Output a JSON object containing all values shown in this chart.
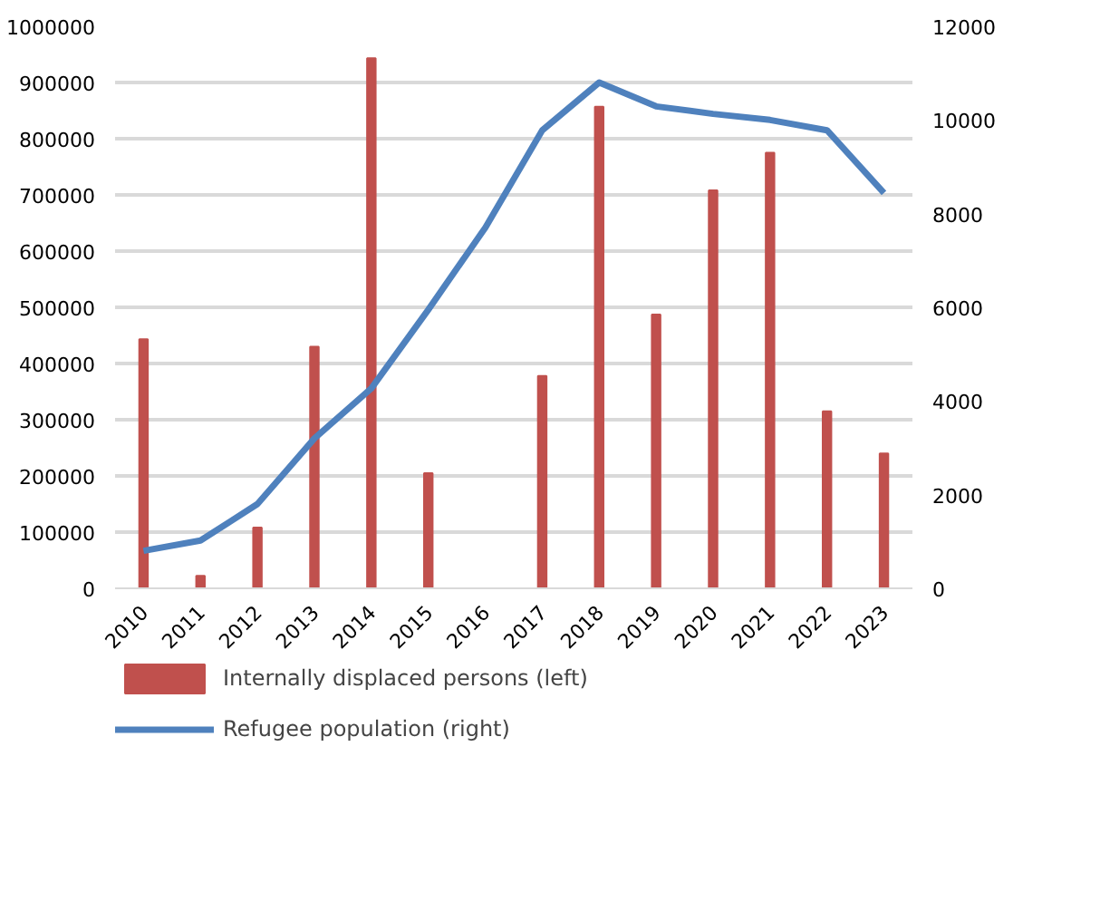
{
  "chart_data": {
    "type": "bar",
    "categories": [
      "2010",
      "2011",
      "2012",
      "2013",
      "2014",
      "2015",
      "2016",
      "2017",
      "2018",
      "2019",
      "2020",
      "2021",
      "2022",
      "2023"
    ],
    "series": [
      {
        "name": "Internally displaced persons (left)",
        "color": "#c0504d",
        "values": [
          443000,
          22000,
          108000,
          430000,
          943000,
          205000,
          0,
          378000,
          857000,
          487000,
          708000,
          775000,
          315000,
          240000
        ]
      },
      {
        "name": "Refugee population (right)",
        "type": "line",
        "axis": "y2",
        "color": "#4f81bd",
        "values": [
          800,
          1020,
          1800,
          3200,
          4270,
          5950,
          7700,
          9780,
          10800,
          10290,
          10130,
          10000,
          9780,
          8440
        ]
      }
    ],
    "ylim": [
      0,
      1000000
    ],
    "yticks": [
      0,
      100000,
      200000,
      300000,
      400000,
      500000,
      600000,
      700000,
      800000,
      900000,
      1000000
    ],
    "y2lim": [
      0,
      12000
    ],
    "y2ticks": [
      0,
      2000,
      4000,
      6000,
      8000,
      10000,
      12000
    ],
    "grid": "y",
    "legend": "bottom"
  }
}
